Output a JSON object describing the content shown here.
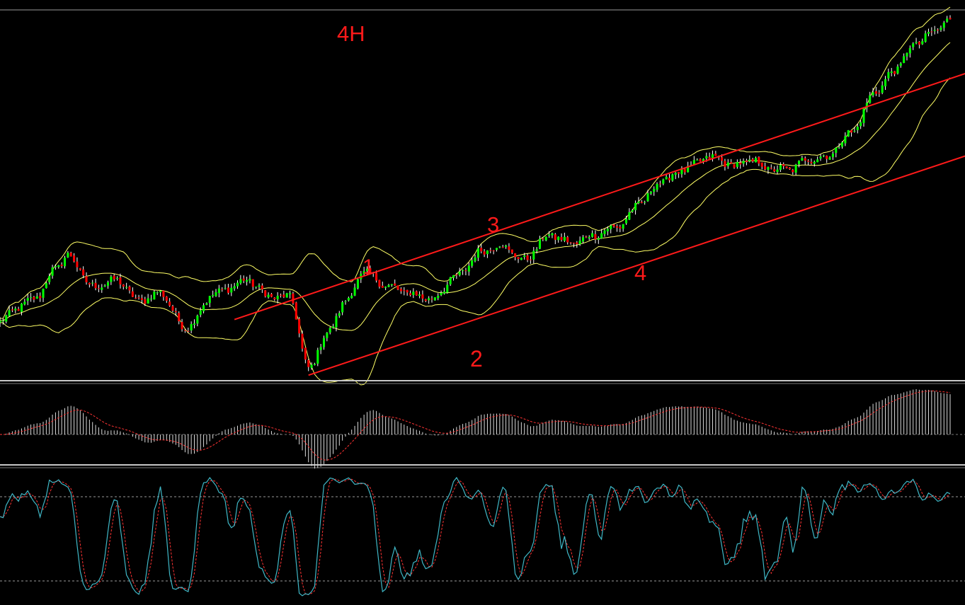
{
  "chart_data": {
    "type": "candlestick",
    "timeframe_label": "4H",
    "colors": {
      "background": "#000000",
      "up_candle": "#00ff00",
      "down_candle": "#ff0000",
      "wick": "#ffffff",
      "bollinger": "#ffff66",
      "trendline": "#ff1a1a",
      "annotation": "#ff1a1a",
      "pane_divider": "#c8c8c8",
      "macd_histogram": "#dcdcdc",
      "macd_signal": "#ff3333",
      "stochastic_main": "#3fb7c6",
      "stochastic_signal": "#ff3333",
      "level_line": "#9a9a9a"
    },
    "price_anchors": {
      "index": [
        0,
        6,
        12,
        18,
        22,
        30,
        38,
        45,
        52,
        60,
        70,
        80,
        88,
        94,
        100,
        106,
        112,
        118,
        126,
        132,
        140,
        148,
        156,
        162,
        170,
        178,
        186,
        192,
        200,
        208,
        214,
        222,
        230,
        238,
        244,
        250,
        256,
        262,
        268,
        276,
        284,
        290,
        296,
        302,
        308
      ],
      "close": [
        0.38,
        0.45,
        0.5,
        0.64,
        0.7,
        0.55,
        0.58,
        0.48,
        0.52,
        0.35,
        0.52,
        0.58,
        0.5,
        0.5,
        0.15,
        0.32,
        0.48,
        0.62,
        0.55,
        0.52,
        0.49,
        0.6,
        0.72,
        0.75,
        0.68,
        0.8,
        0.76,
        0.8,
        0.84,
        0.96,
        1.06,
        1.12,
        1.18,
        1.14,
        1.16,
        1.12,
        1.12,
        1.17,
        1.18,
        1.3,
        1.5,
        1.6,
        1.72,
        1.78,
        1.85
      ]
    },
    "candle_count": 309,
    "bollinger_period": 20,
    "bollinger_deviation": 2,
    "trendlines": [
      {
        "label": "1",
        "start": [
          76,
          0.39
        ],
        "end": [
          308,
          1.56
        ]
      },
      {
        "label": "3",
        "start": [
          76,
          0.39
        ],
        "end": [
          308,
          1.56
        ]
      },
      {
        "label": "2",
        "start": [
          100,
          0.12
        ],
        "end": [
          308,
          1.16
        ]
      },
      {
        "label": "4",
        "start": [
          100,
          0.12
        ],
        "end": [
          308,
          1.16
        ]
      }
    ],
    "annotations": [
      "1",
      "2",
      "3",
      "4"
    ],
    "macd": {
      "fast": 12,
      "slow": 26,
      "signal": 9
    },
    "stochastic": {
      "k": 5,
      "d": 3,
      "smooth": 3,
      "levels": [
        80,
        20
      ]
    },
    "y_range": [
      0.1,
      1.88
    ]
  }
}
